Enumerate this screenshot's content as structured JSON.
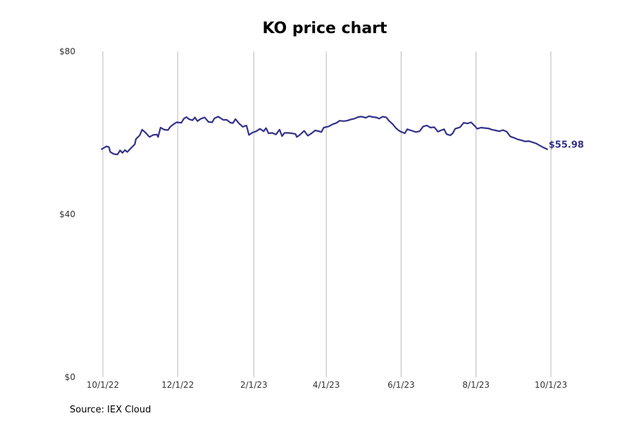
{
  "title": "KO price chart",
  "source": "Source: IEX Cloud",
  "colors": {
    "line": "#33318a",
    "grid": "#bbbbbb"
  },
  "chart_data": {
    "type": "line",
    "title": "KO price chart",
    "xlabel": "",
    "ylabel": "",
    "ylim": [
      0,
      80
    ],
    "y_ticks": [
      {
        "value": 0,
        "label": "$0"
      },
      {
        "value": 40,
        "label": "$40"
      },
      {
        "value": 80,
        "label": "$80"
      }
    ],
    "x_ticks": [
      {
        "date": "2022-10-01",
        "label": "10/1/22"
      },
      {
        "date": "2022-12-01",
        "label": "12/1/22"
      },
      {
        "date": "2023-02-01",
        "label": "2/1/23"
      },
      {
        "date": "2023-04-01",
        "label": "4/1/23"
      },
      {
        "date": "2023-06-01",
        "label": "6/1/23"
      },
      {
        "date": "2023-08-01",
        "label": "8/1/23"
      },
      {
        "date": "2023-10-01",
        "label": "10/1/23"
      }
    ],
    "grid": "vertical",
    "end_label": "$55.98",
    "series": [
      {
        "points": [
          [
            "2022-09-30",
            56.0
          ],
          [
            "2022-10-04",
            56.7
          ],
          [
            "2022-10-06",
            56.5
          ],
          [
            "2022-10-07",
            55.3
          ],
          [
            "2022-10-10",
            54.8
          ],
          [
            "2022-10-13",
            54.7
          ],
          [
            "2022-10-15",
            55.7
          ],
          [
            "2022-10-17",
            55.1
          ],
          [
            "2022-10-19",
            55.8
          ],
          [
            "2022-10-21",
            55.3
          ],
          [
            "2022-10-24",
            56.3
          ],
          [
            "2022-10-27",
            57.2
          ],
          [
            "2022-10-28",
            58.5
          ],
          [
            "2022-10-31",
            59.4
          ],
          [
            "2022-11-02",
            60.8
          ],
          [
            "2022-11-05",
            60.0
          ],
          [
            "2022-11-08",
            59.0
          ],
          [
            "2022-11-11",
            59.5
          ],
          [
            "2022-11-14",
            59.6
          ],
          [
            "2022-11-15",
            59.0
          ],
          [
            "2022-11-17",
            61.3
          ],
          [
            "2022-11-20",
            60.8
          ],
          [
            "2022-11-23",
            60.7
          ],
          [
            "2022-11-25",
            61.5
          ],
          [
            "2022-11-28",
            62.2
          ],
          [
            "2022-11-30",
            62.6
          ],
          [
            "2022-12-04",
            62.5
          ],
          [
            "2022-12-06",
            63.5
          ],
          [
            "2022-12-08",
            63.9
          ],
          [
            "2022-12-10",
            63.4
          ],
          [
            "2022-12-13",
            63.1
          ],
          [
            "2022-12-15",
            63.8
          ],
          [
            "2022-12-17",
            62.9
          ],
          [
            "2022-12-20",
            63.5
          ],
          [
            "2022-12-23",
            63.8
          ],
          [
            "2022-12-26",
            62.7
          ],
          [
            "2022-12-29",
            62.6
          ],
          [
            "2022-12-31",
            63.6
          ],
          [
            "2023-01-03",
            64.0
          ],
          [
            "2023-01-07",
            63.2
          ],
          [
            "2023-01-10",
            63.2
          ],
          [
            "2023-01-13",
            62.5
          ],
          [
            "2023-01-15",
            62.4
          ],
          [
            "2023-01-17",
            63.4
          ],
          [
            "2023-01-20",
            62.3
          ],
          [
            "2023-01-23",
            61.5
          ],
          [
            "2023-01-26",
            61.8
          ],
          [
            "2023-01-28",
            59.5
          ],
          [
            "2023-01-31",
            60.1
          ],
          [
            "2023-02-03",
            60.4
          ],
          [
            "2023-02-06",
            61.0
          ],
          [
            "2023-02-09",
            60.4
          ],
          [
            "2023-02-11",
            61.2
          ],
          [
            "2023-02-13",
            59.9
          ],
          [
            "2023-02-16",
            60.0
          ],
          [
            "2023-02-19",
            59.6
          ],
          [
            "2023-02-22",
            60.8
          ],
          [
            "2023-02-24",
            59.2
          ],
          [
            "2023-02-26",
            60.0
          ],
          [
            "2023-03-01",
            60.0
          ],
          [
            "2023-03-04",
            59.9
          ],
          [
            "2023-03-07",
            59.7
          ],
          [
            "2023-03-08",
            59.0
          ],
          [
            "2023-03-10",
            59.4
          ],
          [
            "2023-03-14",
            60.5
          ],
          [
            "2023-03-17",
            59.3
          ],
          [
            "2023-03-20",
            59.9
          ],
          [
            "2023-03-23",
            60.6
          ],
          [
            "2023-03-26",
            60.4
          ],
          [
            "2023-03-28",
            60.2
          ],
          [
            "2023-03-30",
            61.3
          ],
          [
            "2023-04-03",
            61.6
          ],
          [
            "2023-04-06",
            62.1
          ],
          [
            "2023-04-09",
            62.4
          ],
          [
            "2023-04-12",
            63.0
          ],
          [
            "2023-04-15",
            62.9
          ],
          [
            "2023-04-18",
            63.0
          ],
          [
            "2023-04-21",
            63.3
          ],
          [
            "2023-04-24",
            63.5
          ],
          [
            "2023-04-27",
            63.9
          ],
          [
            "2023-04-30",
            64.0
          ],
          [
            "2023-05-03",
            63.7
          ],
          [
            "2023-05-06",
            64.1
          ],
          [
            "2023-05-09",
            63.9
          ],
          [
            "2023-05-12",
            63.8
          ],
          [
            "2023-05-14",
            63.5
          ],
          [
            "2023-05-17",
            64.0
          ],
          [
            "2023-05-20",
            63.8
          ],
          [
            "2023-05-22",
            63.0
          ],
          [
            "2023-05-25",
            62.2
          ],
          [
            "2023-05-28",
            61.1
          ],
          [
            "2023-05-31",
            60.4
          ],
          [
            "2023-06-04",
            59.9
          ],
          [
            "2023-06-06",
            60.9
          ],
          [
            "2023-06-09",
            60.6
          ],
          [
            "2023-06-13",
            60.2
          ],
          [
            "2023-06-16",
            60.4
          ],
          [
            "2023-06-19",
            61.6
          ],
          [
            "2023-06-22",
            61.8
          ],
          [
            "2023-06-25",
            61.3
          ],
          [
            "2023-06-28",
            61.4
          ],
          [
            "2023-07-01",
            60.3
          ],
          [
            "2023-07-04",
            60.7
          ],
          [
            "2023-07-06",
            60.9
          ],
          [
            "2023-07-08",
            59.7
          ],
          [
            "2023-07-11",
            59.4
          ],
          [
            "2023-07-13",
            59.9
          ],
          [
            "2023-07-15",
            61.0
          ],
          [
            "2023-07-19",
            61.4
          ],
          [
            "2023-07-22",
            62.5
          ],
          [
            "2023-07-25",
            62.3
          ],
          [
            "2023-07-28",
            62.6
          ],
          [
            "2023-07-31",
            61.7
          ],
          [
            "2023-08-02",
            61.0
          ],
          [
            "2023-08-05",
            61.3
          ],
          [
            "2023-08-08",
            61.2
          ],
          [
            "2023-08-11",
            61.1
          ],
          [
            "2023-08-14",
            60.8
          ],
          [
            "2023-08-17",
            60.6
          ],
          [
            "2023-08-20",
            60.4
          ],
          [
            "2023-08-23",
            60.7
          ],
          [
            "2023-08-26",
            60.3
          ],
          [
            "2023-08-29",
            59.1
          ],
          [
            "2023-09-01",
            58.8
          ],
          [
            "2023-09-04",
            58.4
          ],
          [
            "2023-09-07",
            58.2
          ],
          [
            "2023-09-10",
            57.9
          ],
          [
            "2023-09-13",
            58.0
          ],
          [
            "2023-09-16",
            57.7
          ],
          [
            "2023-09-19",
            57.4
          ],
          [
            "2023-09-22",
            56.9
          ],
          [
            "2023-09-25",
            56.4
          ],
          [
            "2023-09-28",
            55.98
          ]
        ]
      }
    ]
  }
}
